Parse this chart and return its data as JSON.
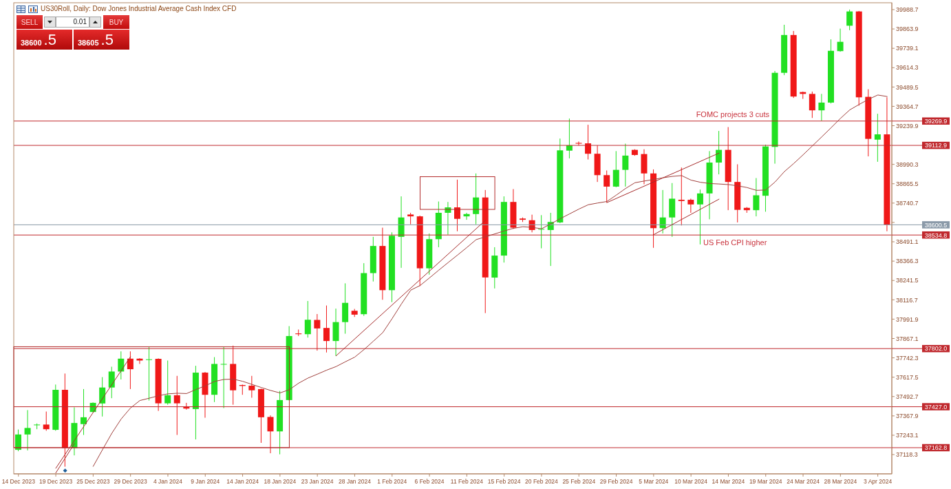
{
  "chart_data": {
    "type": "candlestick",
    "title": "US30Roll, Daily: Dow Jones Industrial Average Cash Index CFD",
    "categories": [
      "14 Dec 2023",
      null,
      null,
      null,
      "19 Dec 2023",
      null,
      null,
      null,
      "25 Dec 2023",
      null,
      null,
      null,
      "29 Dec 2023",
      null,
      null,
      null,
      "4 Jan 2024",
      null,
      null,
      null,
      "9 Jan 2024",
      null,
      null,
      null,
      "14 Jan 2024",
      null,
      null,
      null,
      "18 Jan 2024",
      null,
      null,
      null,
      "23 Jan 2024",
      null,
      null,
      null,
      "28 Jan 2024",
      null,
      null,
      null,
      "1 Feb 2024",
      null,
      null,
      null,
      "6 Feb 2024",
      null,
      null,
      null,
      "11 Feb 2024",
      null,
      null,
      null,
      "15 Feb 2024",
      null,
      null,
      null,
      "20 Feb 2024",
      null,
      null,
      null,
      "25 Feb 2024",
      null,
      null,
      null,
      "29 Feb 2024",
      null,
      null,
      null,
      "5 Mar 2024",
      null,
      null,
      null,
      "10 Mar 2024",
      null,
      null,
      null,
      "14 Mar 2024",
      null,
      null,
      null,
      "19 Mar 2024",
      null,
      null,
      null,
      "24 Mar 2024",
      null,
      null,
      null,
      "28 Mar 2024",
      null,
      null,
      null,
      "3 Apr 2024",
      null
    ],
    "ohlc": [
      [
        37149,
        37280,
        37140,
        37248
      ],
      [
        37248,
        37405,
        37145,
        37290
      ],
      [
        37310,
        37319,
        37282,
        37312
      ],
      [
        37312,
        37396,
        37272,
        37282
      ],
      [
        37278,
        37570,
        37272,
        37536
      ],
      [
        37536,
        37641,
        37040,
        37160
      ],
      [
        37160,
        37423,
        37113,
        37322
      ],
      [
        37315,
        37541,
        37245,
        37359
      ],
      [
        37393,
        37455,
        37390,
        37452
      ],
      [
        37448,
        37618,
        37364,
        37551
      ],
      [
        37551,
        37685,
        37482,
        37654
      ],
      [
        37654,
        37784,
        37603,
        37737
      ],
      [
        37737,
        37784,
        37541,
        37669
      ],
      [
        37737,
        37740,
        37703,
        37725
      ],
      [
        37730,
        37811,
        37467,
        37733
      ],
      [
        37736,
        37739,
        37400,
        37449
      ],
      [
        37449,
        37725,
        37440,
        37501
      ],
      [
        37501,
        37626,
        37245,
        37449
      ],
      [
        37426,
        37452,
        37408,
        37415
      ],
      [
        37412,
        37691,
        37216,
        37647
      ],
      [
        37647,
        37651,
        37356,
        37504
      ],
      [
        37504,
        37747,
        37457,
        37703
      ],
      [
        37700,
        37814,
        37418,
        37703
      ],
      [
        37703,
        37821,
        37440,
        37533
      ],
      [
        37567,
        37570,
        37504,
        37561
      ],
      [
        37563,
        37626,
        37485,
        37533
      ],
      [
        37541,
        37544,
        37194,
        37359
      ],
      [
        37361,
        37371,
        37127,
        37268
      ],
      [
        37268,
        37529,
        37120,
        37470
      ],
      [
        37470,
        37947,
        37467,
        37883
      ],
      [
        37900,
        37925,
        37883,
        37895
      ],
      [
        37895,
        38109,
        37873,
        37988
      ],
      [
        37987,
        38025,
        37789,
        37932
      ],
      [
        37935,
        38080,
        37777,
        37851
      ],
      [
        37851,
        38060,
        37755,
        37973
      ],
      [
        37973,
        38223,
        37898,
        38097
      ],
      [
        38046,
        38058,
        38006,
        38021
      ],
      [
        38024,
        38353,
        38013,
        38289
      ],
      [
        38289,
        38523,
        38235,
        38464
      ],
      [
        38464,
        38582,
        38117,
        38179
      ],
      [
        38179,
        38552,
        38102,
        38530
      ],
      [
        38523,
        38784,
        38323,
        38648
      ],
      [
        38667,
        38678,
        38604,
        38655
      ],
      [
        38655,
        38660,
        38205,
        38320
      ],
      [
        38320,
        38545,
        38279,
        38508
      ],
      [
        38508,
        38751,
        38456,
        38678
      ],
      [
        38678,
        38748,
        38537,
        38713
      ],
      [
        38713,
        38892,
        38559,
        38639
      ],
      [
        38655,
        38678,
        38633,
        38670
      ],
      [
        38670,
        38932,
        38604,
        38777
      ],
      [
        38777,
        38825,
        38031,
        38261
      ],
      [
        38260,
        38456,
        38190,
        38402
      ],
      [
        38402,
        38784,
        38357,
        38748
      ],
      [
        38748,
        38831,
        38574,
        38582
      ],
      [
        38641,
        38648,
        38619,
        38633
      ],
      [
        38630,
        38666,
        38552,
        38567
      ],
      [
        38570,
        38663,
        38449,
        38574
      ],
      [
        38567,
        38678,
        38335,
        38619
      ],
      [
        38616,
        39157,
        38611,
        39081
      ],
      [
        39079,
        39286,
        39029,
        39113
      ],
      [
        39129,
        39138,
        39112,
        39124
      ],
      [
        39126,
        39246,
        39022,
        39059
      ],
      [
        39059,
        39113,
        38877,
        38921
      ],
      [
        38921,
        38951,
        38744,
        38847
      ],
      [
        38847,
        39076,
        38843,
        38955
      ],
      [
        38955,
        39124,
        38847,
        39047
      ],
      [
        39084,
        39088,
        39046,
        39051
      ],
      [
        39057,
        39088,
        38862,
        38932
      ],
      [
        38932,
        38958,
        38452,
        38579
      ],
      [
        38579,
        38825,
        38545,
        38648
      ],
      [
        38648,
        38870,
        38523,
        38769
      ],
      [
        38762,
        38970,
        38596,
        38754
      ],
      [
        38762,
        38769,
        38678,
        38732
      ],
      [
        38732,
        38828,
        38474,
        38803
      ],
      [
        38803,
        39076,
        38636,
        39002
      ],
      [
        39002,
        39206,
        38926,
        39084
      ],
      [
        39084,
        39231,
        38695,
        38877
      ],
      [
        38877,
        38991,
        38616,
        38697
      ],
      [
        38710,
        38715,
        38678,
        38695
      ],
      [
        38695,
        38902,
        38655,
        38791
      ],
      [
        38788,
        39118,
        38685,
        39106
      ],
      [
        39103,
        39593,
        38995,
        39581
      ],
      [
        39581,
        39891,
        39566,
        39825
      ],
      [
        39825,
        39851,
        39419,
        39428
      ],
      [
        39457,
        39460,
        39413,
        39445
      ],
      [
        39445,
        39460,
        39290,
        39339
      ],
      [
        39339,
        39445,
        39271,
        39389
      ],
      [
        39389,
        39797,
        39383,
        39723
      ],
      [
        39721,
        39866,
        39717,
        39781
      ],
      [
        39885,
        39989,
        39856,
        39977
      ],
      [
        39977,
        39980,
        39369,
        39423
      ],
      [
        39426,
        39475,
        39042,
        39155
      ],
      [
        39150,
        39317,
        39007,
        39184
      ],
      [
        39184,
        39423,
        38559,
        38600.5
      ]
    ],
    "colors": [
      "#22e022",
      "#22e022",
      "#22e022",
      "#f01818",
      "#22e022",
      "#f01818",
      "#22e022",
      "#22e022",
      "#22e022",
      "#22e022",
      "#22e022",
      "#22e022",
      "#f01818",
      "#f01818",
      "#22e022",
      "#f01818",
      "#22e022",
      "#f01818",
      "#f01818",
      "#22e022",
      "#f01818",
      "#22e022",
      "#22e022",
      "#f01818",
      "#f01818",
      "#f01818",
      "#f01818",
      "#f01818",
      "#22e022",
      "#22e022",
      "#f01818",
      "#22e022",
      "#f01818",
      "#f01818",
      "#22e022",
      "#22e022",
      "#f01818",
      "#22e022",
      "#22e022",
      "#f01818",
      "#22e022",
      "#22e022",
      "#f01818",
      "#f01818",
      "#22e022",
      "#22e022",
      "#22e022",
      "#f01818",
      "#22e022",
      "#22e022",
      "#f01818",
      "#22e022",
      "#22e022",
      "#f01818",
      "#f01818",
      "#f01818",
      "#22e022",
      "#22e022",
      "#22e022",
      "#22e022",
      "#f01818",
      "#f01818",
      "#f01818",
      "#f01818",
      "#22e022",
      "#22e022",
      "#f01818",
      "#f01818",
      "#f01818",
      "#22e022",
      "#22e022",
      "#f01818",
      "#f01818",
      "#22e022",
      "#22e022",
      "#22e022",
      "#f01818",
      "#f01818",
      "#f01818",
      "#22e022",
      "#22e022",
      "#22e022",
      "#22e022",
      "#f01818",
      "#f01818",
      "#f01818",
      "#22e022",
      "#22e022",
      "#22e022",
      "#22e022",
      "#f01818",
      "#f01818",
      "#22e022",
      "#f01818"
    ],
    "series": [
      {
        "type": "line",
        "color": "#a0403c",
        "values": [
          null,
          null,
          null,
          null,
          null,
          null,
          null,
          null,
          37042,
          37150,
          37256,
          37348,
          37419,
          37467,
          37482,
          37498,
          37510,
          37514,
          37512,
          37538,
          37562,
          37590,
          37603,
          37605,
          37591,
          37571,
          37551,
          37532,
          37516,
          37537,
          37579,
          37612,
          37637,
          37663,
          37686,
          37717,
          37747,
          37796,
          37850,
          37905,
          37995,
          38090,
          38179,
          38209,
          38258,
          38308,
          38357,
          38405,
          38454,
          38505,
          38523,
          38542,
          38561,
          38578,
          38588,
          38584,
          38575,
          38607,
          38640,
          38671,
          38702,
          38730,
          38741,
          38751,
          38792,
          38835,
          38872,
          38883,
          38893,
          38904,
          38913,
          38918,
          38889,
          38875,
          38867,
          38864,
          38860,
          38852,
          38841,
          38823,
          38825,
          38877,
          38944,
          38996,
          39052,
          39110,
          39168,
          39227,
          39287,
          39342,
          39377,
          39410,
          39438,
          39428
        ]
      },
      {
        "type": "line",
        "color": "#a52a2a",
        "values": [
          null,
          null,
          null,
          null,
          37030,
          null,
          null,
          null,
          null,
          null,
          null,
          null,
          37750,
          null,
          null,
          null,
          null,
          null,
          null,
          null,
          null,
          null,
          null,
          null,
          null,
          null,
          null,
          null,
          null,
          null,
          null,
          null,
          null,
          null,
          null,
          null,
          null,
          null,
          null,
          null,
          null,
          null,
          null,
          null,
          null,
          null,
          null,
          null,
          null,
          null,
          null,
          null,
          null,
          null,
          null,
          null,
          null,
          null,
          null,
          null,
          null,
          null,
          null,
          null,
          null,
          null,
          null,
          null,
          null,
          null,
          null,
          null,
          null,
          null,
          null,
          null,
          null,
          null,
          null,
          null,
          null,
          null,
          null,
          null,
          null,
          null,
          null,
          null,
          null,
          null,
          null,
          null,
          null,
          null
        ]
      },
      {
        "type": "line",
        "color": "#a52a2a",
        "values": [
          null,
          null,
          null,
          null,
          37000,
          null,
          37190,
          null,
          null,
          null,
          null,
          null,
          null,
          null,
          null,
          null,
          null,
          null,
          null,
          null,
          null,
          null,
          null,
          null,
          null,
          null,
          null,
          null,
          null,
          null,
          null,
          null,
          null,
          null,
          null,
          null,
          null,
          null,
          null,
          null,
          null,
          null,
          null,
          null,
          null,
          null,
          null,
          null,
          null,
          null,
          null,
          null,
          null,
          null,
          null,
          null,
          null,
          null,
          null,
          null,
          null,
          null,
          null,
          null,
          null,
          null,
          null,
          null,
          null,
          null,
          null,
          null,
          null,
          null,
          null,
          null,
          null,
          null,
          null,
          null,
          null,
          null,
          null,
          null,
          null,
          null,
          null,
          null,
          null,
          null,
          null,
          null,
          null,
          null
        ]
      },
      {
        "type": "line",
        "color": "#a52a2a",
        "values": [
          null,
          null,
          null,
          null,
          null,
          null,
          null,
          null,
          null,
          null,
          null,
          null,
          null,
          null,
          null,
          null,
          null,
          null,
          null,
          null,
          null,
          null,
          null,
          null,
          null,
          null,
          null,
          null,
          null,
          null,
          null,
          null,
          null,
          null,
          37755,
          null,
          null,
          null,
          null,
          null,
          null,
          null,
          null,
          null,
          null,
          null,
          null,
          null,
          null,
          null,
          38630,
          null,
          null,
          null,
          null,
          null,
          null,
          null,
          null,
          null,
          null,
          null,
          null,
          null,
          null,
          null,
          null,
          null,
          null,
          null,
          null,
          null,
          null,
          null,
          null,
          null,
          null,
          null,
          null,
          null,
          null,
          null,
          null,
          null,
          null,
          null,
          null,
          null,
          null,
          null,
          null,
          null,
          null,
          null
        ]
      },
      {
        "type": "line",
        "color": "#a52a2a",
        "values": [
          null,
          null,
          null,
          null,
          null,
          null,
          null,
          null,
          null,
          null,
          null,
          null,
          null,
          null,
          null,
          null,
          null,
          null,
          null,
          null,
          null,
          null,
          null,
          null,
          null,
          null,
          null,
          null,
          null,
          null,
          null,
          null,
          null,
          null,
          null,
          null,
          null,
          null,
          null,
          null,
          null,
          null,
          null,
          null,
          null,
          null,
          null,
          null,
          null,
          null,
          null,
          null,
          null,
          null,
          null,
          null,
          null,
          null,
          null,
          null,
          null,
          null,
          null,
          null,
          null,
          null,
          null,
          null,
          38537,
          null,
          null,
          null,
          null,
          null,
          null,
          38766,
          null,
          null,
          null,
          null,
          null,
          null,
          null,
          null,
          null,
          null,
          null,
          null,
          null,
          null,
          null,
          null,
          null,
          null
        ]
      },
      {
        "type": "line",
        "color": "#a52a2a",
        "values": [
          null,
          null,
          null,
          null,
          null,
          null,
          null,
          null,
          null,
          null,
          null,
          null,
          null,
          null,
          null,
          null,
          null,
          null,
          null,
          null,
          null,
          null,
          null,
          null,
          null,
          null,
          null,
          null,
          null,
          null,
          null,
          null,
          null,
          null,
          null,
          null,
          null,
          null,
          null,
          null,
          null,
          null,
          null,
          null,
          null,
          null,
          null,
          null,
          null,
          null,
          null,
          null,
          null,
          null,
          null,
          null,
          null,
          null,
          null,
          null,
          null,
          null,
          null,
          38744,
          null,
          null,
          null,
          null,
          null,
          null,
          null,
          null,
          null,
          null,
          null,
          39063,
          null,
          null,
          null,
          null,
          null,
          null,
          null,
          null,
          null,
          null,
          null,
          null,
          null,
          null,
          null,
          null,
          null,
          null
        ]
      }
    ],
    "ylim": [
      36994,
      40033
    ],
    "yticks": [
      37118.3,
      37243.1,
      37367.9,
      37492.7,
      37617.5,
      37742.3,
      37867.1,
      37991.9,
      38116.7,
      38241.5,
      38366.3,
      38491.1,
      {
        "value": 38615.9,
        "label": null
      },
      38740.7,
      38865.5,
      38990.3,
      39239.9,
      39364.7,
      39489.5,
      39614.3,
      39739.1,
      39863.9,
      39988.7
    ],
    "ref_lines": [
      {
        "axis": "y",
        "value": 39269.9,
        "label": "39269.9",
        "color": "#c0282d"
      },
      {
        "axis": "y",
        "value": 39112.9,
        "label": "39112.9",
        "color": "#c0282d"
      },
      {
        "axis": "y",
        "value": 38600.5,
        "label": "38600.5",
        "color": "#8a99a8"
      },
      {
        "axis": "y",
        "value": 38534.8,
        "label": "38534.8",
        "color": "#c0282d"
      },
      {
        "axis": "y",
        "value": 37802.0,
        "label": "37802.0",
        "color": "#c0282d"
      },
      {
        "axis": "y",
        "value": 37427.0,
        "label": "37427.0",
        "color": "#c0282d"
      },
      {
        "axis": "y",
        "value": 37162.8,
        "label": "37162.8",
        "color": "#c0282d"
      }
    ],
    "annotations": [
      "FOMC projects 3 cuts",
      "US Feb CPI higher",
      "SELL",
      "0.01",
      "BUY",
      "38600.5",
      "38605.5"
    ]
  }
}
